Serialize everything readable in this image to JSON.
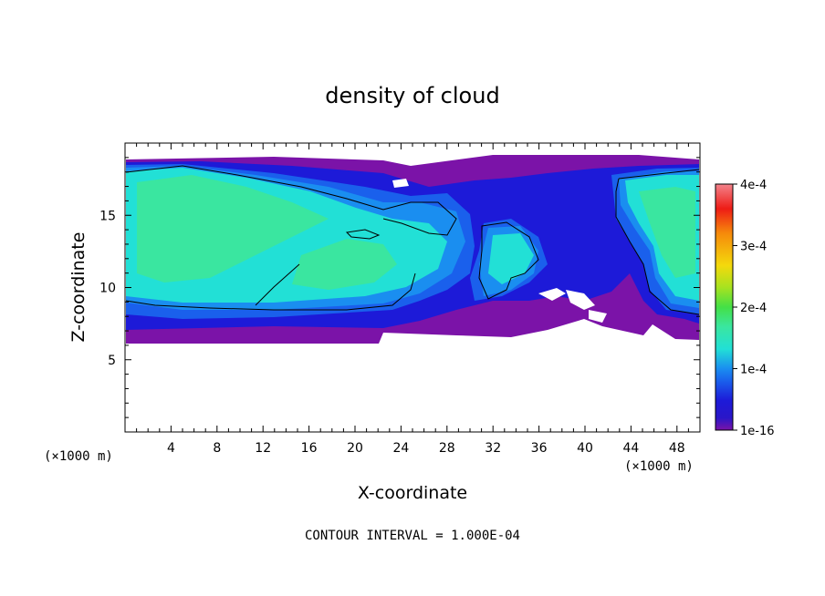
{
  "chart_data": {
    "type": "heatmap",
    "title": "density of cloud",
    "xlabel": "X-coordinate",
    "ylabel": "Z-coordinate",
    "x_unit": "(×1000 m)",
    "y_unit": "(×1000 m)",
    "xlim": [
      0,
      50
    ],
    "ylim": [
      0,
      20
    ],
    "x_ticks": [
      "4",
      "8",
      "12",
      "16",
      "20",
      "24",
      "28",
      "32",
      "36",
      "40",
      "44",
      "48"
    ],
    "y_ticks": [
      "5",
      "10",
      "15"
    ],
    "colorbar": {
      "range": [
        0,
        0.0004
      ],
      "labels": [
        "1e-16",
        "1e-4",
        "2e-4",
        "3e-4",
        "4e-4"
      ],
      "colors": [
        "#7b13a8",
        "#1d1ad8",
        "#1a8ef0",
        "#22e0d6",
        "#3ae6a0",
        "#44e046",
        "#a7e220",
        "#f4d90c",
        "#f68a0b",
        "#ee1c16",
        "#f3838c"
      ]
    },
    "contour_interval": "CONTOUR INTERVAL = 1.000E-04",
    "grid": false
  }
}
